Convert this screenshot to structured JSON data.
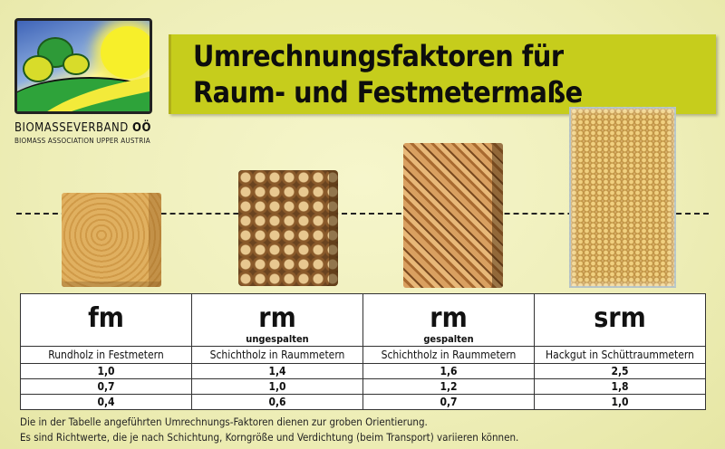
{
  "brand": {
    "name": "BIOMASSEVERBAND",
    "name_suffix": "OÖ",
    "tagline": "BIOMASS ASSOCIATION UPPER AUSTRIA"
  },
  "title": {
    "line1": "Umrechnungsfaktoren für",
    "line2": "Raum- und Festmetermaße"
  },
  "colors": {
    "banner": "#c6cd1c",
    "background": "#eeeeb8"
  },
  "table": {
    "columns": [
      {
        "unit": "fm",
        "sub": "",
        "desc": "Rundholz in Festmetern"
      },
      {
        "unit": "rm",
        "sub": "ungespalten",
        "desc": "Schichtholz in Raummetern"
      },
      {
        "unit": "rm",
        "sub": "gespalten",
        "desc": "Schichtholz in Raummetern"
      },
      {
        "unit": "srm",
        "sub": "",
        "desc": "Hackgut in Schüttraummetern"
      }
    ],
    "rows": [
      [
        "1,0",
        "1,4",
        "1,6",
        "2,5"
      ],
      [
        "0,7",
        "1,0",
        "1,2",
        "1,8"
      ],
      [
        "0,4",
        "0,6",
        "0,7",
        "1,0"
      ]
    ]
  },
  "note": {
    "line1": "Die in der Tabelle angeführten Umrechnungs-Faktoren dienen zur groben Orientierung.",
    "line2": "Es sind Richtwerte, die je nach Schichtung, Korngröße und Verdichtung (beim Transport) variieren können."
  }
}
